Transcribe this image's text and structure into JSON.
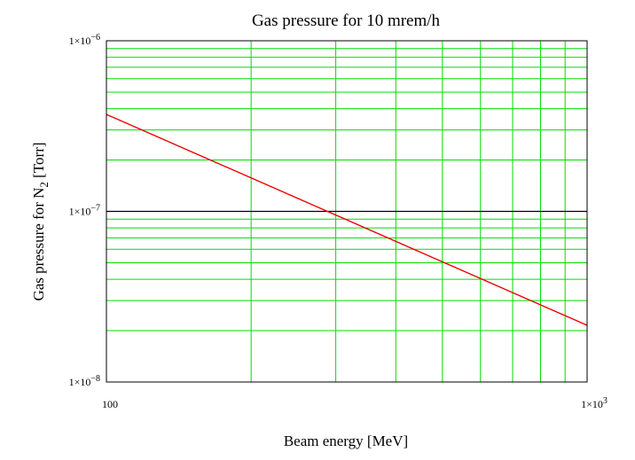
{
  "chart_data": {
    "type": "line",
    "title": "Gas pressure for 10 mrem/h",
    "xlabel": "Beam energy [MeV]",
    "ylabel": {
      "main": "Gas pressure for N",
      "sub": "2",
      "tail": " [Torr]"
    },
    "x_scale": "log",
    "y_scale": "log",
    "xlim": [
      100,
      1000
    ],
    "ylim": [
      1e-08,
      1e-06
    ],
    "grid": true,
    "grid_color": "#00dd00",
    "x_ticks": [
      {
        "value": 100,
        "mantissa": "100",
        "exp": ""
      },
      {
        "value": 1000,
        "mantissa": "1×10",
        "exp": "3"
      }
    ],
    "y_ticks": [
      {
        "value": 1e-06,
        "mantissa": "1×10",
        "exp": "−6"
      },
      {
        "value": 1e-07,
        "mantissa": "1×10",
        "exp": "−7"
      },
      {
        "value": 1e-08,
        "mantissa": "1×10",
        "exp": "−8"
      }
    ],
    "series": [
      {
        "color": "#ee0000",
        "x": [
          100,
          1000
        ],
        "y": [
          3.7e-07,
          2.15e-08
        ]
      }
    ],
    "reference_lines": [
      {
        "axis": "y",
        "value": 1e-07,
        "color": "#000000"
      }
    ]
  }
}
